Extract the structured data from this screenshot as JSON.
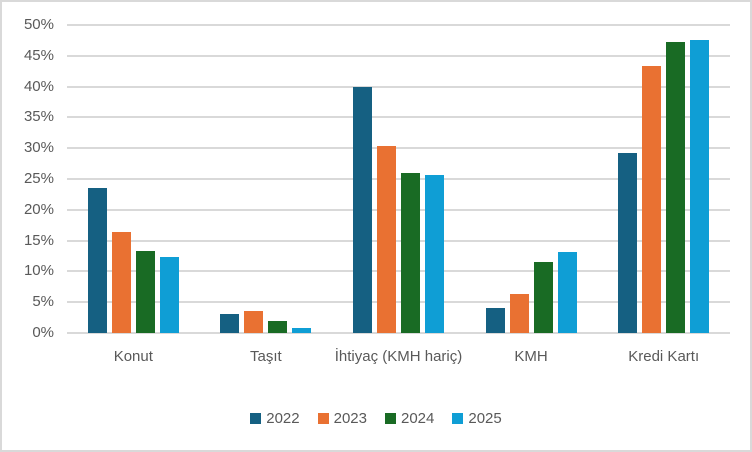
{
  "chart_data": {
    "type": "bar",
    "title": "",
    "xlabel": "",
    "ylabel": "",
    "categories": [
      "Konut",
      "Taşıt",
      "İhtiyaç (KMH hariç)",
      "KMH",
      "Kredi Kartı"
    ],
    "series": [
      {
        "name": "2022",
        "color": "#156082",
        "values": [
          23.5,
          3.1,
          39.9,
          4.1,
          29.2
        ]
      },
      {
        "name": "2023",
        "color": "#E97132",
        "values": [
          16.4,
          3.5,
          30.4,
          6.4,
          43.3
        ]
      },
      {
        "name": "2024",
        "color": "#196B24",
        "values": [
          13.3,
          1.9,
          25.9,
          11.5,
          47.3
        ]
      },
      {
        "name": "2025",
        "color": "#0F9ED5",
        "values": [
          12.3,
          0.8,
          25.7,
          13.2,
          47.6
        ]
      }
    ],
    "ylim": [
      0,
      50
    ],
    "y_major_unit": 5,
    "y_tick_labels": [
      "0%",
      "5%",
      "10%",
      "15%",
      "20%",
      "25%",
      "30%",
      "35%",
      "40%",
      "45%",
      "50%"
    ],
    "grid": true,
    "legend_position": "bottom"
  },
  "styles": {
    "grid_color": "#d9d9d9",
    "axis_text_color": "#595959",
    "frame_border_color": "#d9d9d9",
    "background": "#ffffff"
  }
}
